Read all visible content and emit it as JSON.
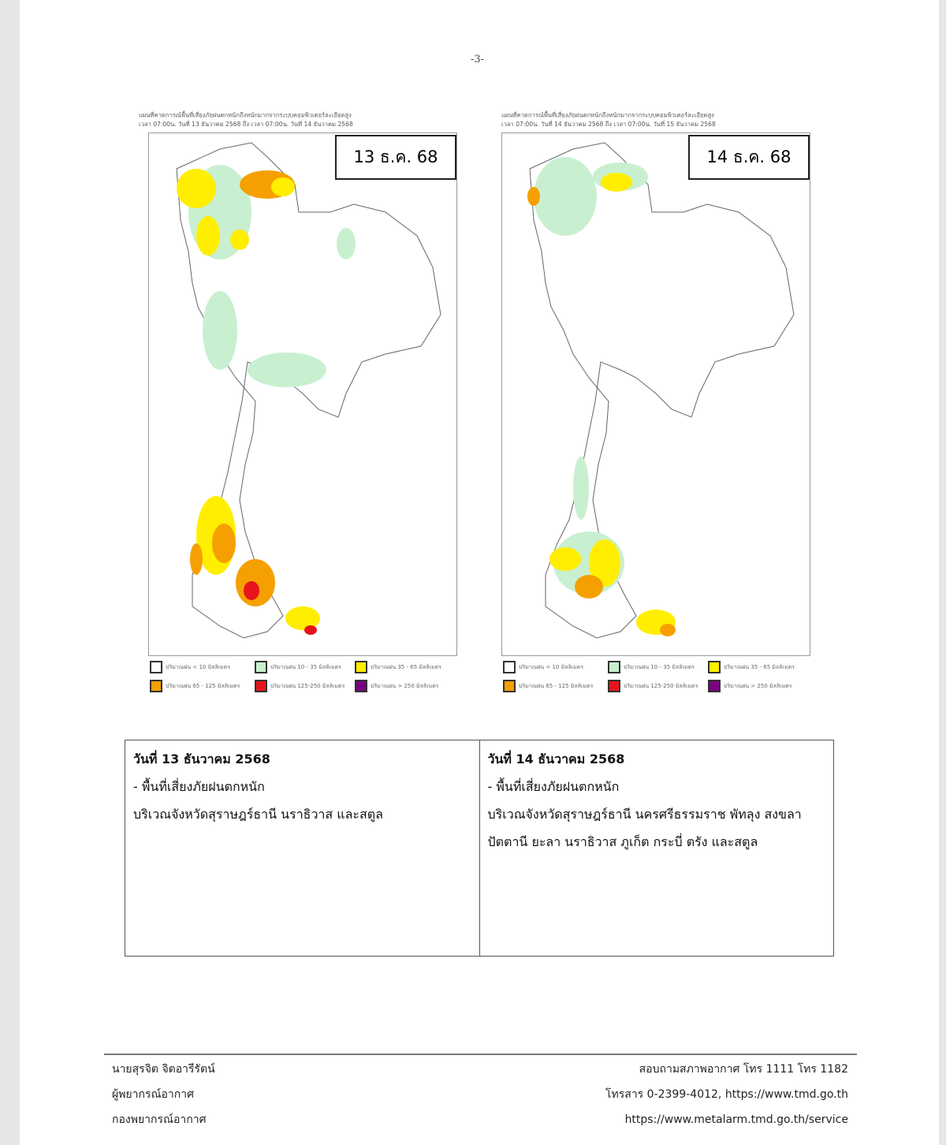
{
  "page_number": "-3-",
  "maps": [
    {
      "title": "แผนที่คาดการณ์พื้นที่เสี่ยงภัยฝนตกหนักถึงหนักมากจากระบบคอมพิวเตอร์ละเอียดสูง",
      "period": "เวลา 07:00น. วันที่ 13 ธันวาคม 2568 ถึง เวลา 07:00น. วันที่ 14 ธันวาคม 2568",
      "date_label": "13 ธ.ค. 68"
    },
    {
      "title": "แผนที่คาดการณ์พื้นที่เสี่ยงภัยฝนตกหนักถึงหนักมากจากระบบคอมพิวเตอร์ละเอียดสูง",
      "period": "เวลา 07:00น. วันที่ 14 ธันวาคม 2568 ถึง เวลา 07:00น. วันที่ 15 ธันวาคม 2568",
      "date_label": "14 ธ.ค. 68"
    }
  ],
  "legend": [
    {
      "label": "ปริมาณฝน < 10 มิลลิเมตร",
      "color": "#ffffff"
    },
    {
      "label": "ปริมาณฝน 10 - 35 มิลลิเมตร",
      "color": "#c8f0d0"
    },
    {
      "label": "ปริมาณฝน 35 - 65 มิลลิเมตร",
      "color": "#ffee00"
    },
    {
      "label": "ปริมาณฝน 65 - 125 มิลลิเมตร",
      "color": "#f5a000"
    },
    {
      "label": "ปริมาณฝน 125-250 มิลลิเมตร",
      "color": "#e8141c"
    },
    {
      "label": "ปริมาณฝน > 250 มิลลิเมตร",
      "color": "#7a0080"
    }
  ],
  "table": [
    {
      "date": "วันที่ 13 ธันวาคม 2568",
      "heading": "- พื้นที่เสี่ยงภัยฝนตกหนัก",
      "lines": [
        "บริเวณจังหวัดสุราษฎร์ธานี นราธิวาส และสตูล"
      ]
    },
    {
      "date": "วันที่ 14 ธันวาคม 2568",
      "heading": "- พื้นที่เสี่ยงภัยฝนตกหนัก",
      "lines": [
        "บริเวณจังหวัดสุราษฎร์ธานี นครศรีธรรมราช พัทลุง สงขลา",
        "ปัตตานี ยะลา นราธิวาส ภูเก็ต กระบี่ ตรัง และสตูล"
      ]
    }
  ],
  "footer": {
    "left": [
      "นายสุรจิต จิตอารีรัตน์",
      "ผู้พยากรณ์อากาศ",
      "กองพยากรณ์อากาศ"
    ],
    "right": [
      "สอบถามสภาพอากาศ โทร 1111 โทร 1182",
      "โทรสาร 0-2399-4012, https://www.tmd.go.th",
      "https://www.metalarm.tmd.go.th/service"
    ]
  }
}
